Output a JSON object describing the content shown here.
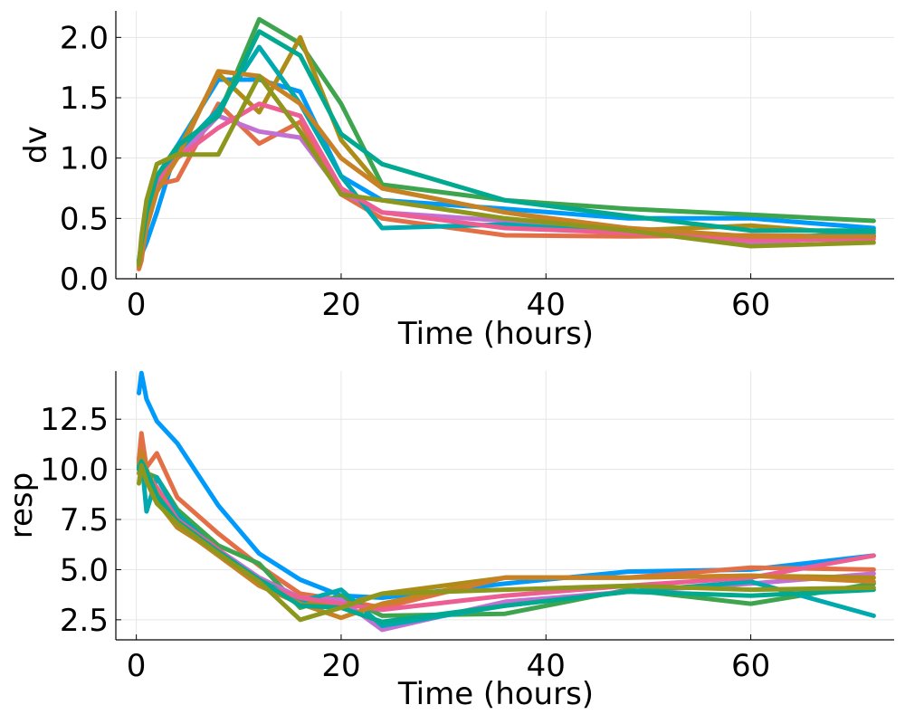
{
  "chart_data": [
    {
      "type": "line",
      "title": "",
      "xlabel": "Time (hours)",
      "ylabel": "dv",
      "xlim": [
        -2,
        74
      ],
      "ylim": [
        0.0,
        2.22
      ],
      "xticks": [
        0,
        20,
        40,
        60
      ],
      "xtick_labels": [
        "0",
        "20",
        "40",
        "60"
      ],
      "yticks": [
        0.0,
        0.5,
        1.0,
        1.5,
        2.0
      ],
      "ytick_labels": [
        "0.0",
        "0.5",
        "1.0",
        "1.5",
        "2.0"
      ],
      "grid": true,
      "legend": "none",
      "series": [
        {
          "color": "#009AFA",
          "x": [
            0.25,
            0.5,
            1,
            2,
            4,
            8,
            12,
            16,
            20,
            24,
            36,
            48,
            60,
            72
          ],
          "y": [
            0.13,
            0.2,
            0.3,
            0.55,
            1.1,
            1.65,
            1.65,
            1.55,
            0.85,
            0.65,
            0.58,
            0.5,
            0.5,
            0.42
          ]
        },
        {
          "color": "#E36F47",
          "x": [
            0.25,
            0.5,
            1,
            2,
            4,
            8,
            12,
            16,
            20,
            24,
            36,
            48,
            60,
            72
          ],
          "y": [
            0.08,
            0.15,
            0.45,
            0.78,
            0.82,
            1.45,
            1.12,
            1.3,
            0.7,
            0.5,
            0.36,
            0.35,
            0.36,
            0.35
          ]
        },
        {
          "color": "#3EA44E",
          "x": [
            0.25,
            0.5,
            1,
            2,
            4,
            8,
            12,
            16,
            20,
            24,
            36,
            48,
            60,
            72
          ],
          "y": [
            0.1,
            0.22,
            0.5,
            0.8,
            1.0,
            1.35,
            2.15,
            1.95,
            1.45,
            0.78,
            0.65,
            0.58,
            0.53,
            0.48
          ]
        },
        {
          "color": "#C271D2",
          "x": [
            0.25,
            0.5,
            1,
            2,
            4,
            8,
            12,
            16,
            20,
            24,
            36,
            48,
            60,
            72
          ],
          "y": [
            0.15,
            0.25,
            0.5,
            0.82,
            1.0,
            1.35,
            1.22,
            1.17,
            0.72,
            0.55,
            0.48,
            0.42,
            0.3,
            0.35
          ]
        },
        {
          "color": "#AC8D18",
          "x": [
            0.25,
            0.5,
            1,
            2,
            4,
            8,
            12,
            16,
            20,
            24,
            36,
            48,
            60,
            72
          ],
          "y": [
            0.1,
            0.22,
            0.48,
            0.8,
            1.05,
            1.7,
            1.38,
            2.0,
            1.15,
            0.75,
            0.55,
            0.4,
            0.44,
            0.36
          ]
        },
        {
          "color": "#00A9AD",
          "x": [
            0.25,
            0.5,
            1,
            2,
            4,
            8,
            12,
            16,
            20,
            24,
            36,
            48,
            60,
            72
          ],
          "y": [
            0.12,
            0.2,
            0.45,
            0.75,
            1.05,
            1.4,
            1.92,
            1.45,
            0.85,
            0.42,
            0.45,
            0.38,
            0.33,
            0.38
          ]
        },
        {
          "color": "#ED5E93",
          "x": [
            0.25,
            0.5,
            1,
            2,
            4,
            8,
            12,
            16,
            20,
            24,
            36,
            48,
            60,
            72
          ],
          "y": [
            0.12,
            0.25,
            0.5,
            0.8,
            1.0,
            1.25,
            1.45,
            1.35,
            0.75,
            0.55,
            0.42,
            0.38,
            0.32,
            0.33
          ]
        },
        {
          "color": "#C68225",
          "x": [
            0.25,
            0.5,
            1,
            2,
            4,
            8,
            12,
            16,
            20,
            24,
            36,
            48,
            60,
            72
          ],
          "y": [
            0.1,
            0.2,
            0.42,
            0.72,
            1.0,
            1.72,
            1.68,
            1.45,
            1.0,
            0.75,
            0.55,
            0.42,
            0.35,
            0.35
          ]
        },
        {
          "color": "#00A98F",
          "x": [
            0.25,
            0.5,
            1,
            2,
            4,
            8,
            12,
            16,
            20,
            24,
            36,
            48,
            60,
            72
          ],
          "y": [
            0.15,
            0.3,
            0.55,
            0.85,
            1.1,
            1.35,
            2.05,
            1.85,
            1.2,
            0.95,
            0.65,
            0.52,
            0.4,
            0.4
          ]
        },
        {
          "color": "#8E971D",
          "x": [
            0.25,
            0.5,
            1,
            2,
            4,
            8,
            12,
            16,
            20,
            24,
            36,
            48,
            60,
            72
          ],
          "y": [
            0.12,
            0.35,
            0.65,
            0.95,
            1.03,
            1.03,
            1.68,
            1.22,
            0.7,
            0.65,
            0.5,
            0.4,
            0.27,
            0.3
          ]
        }
      ]
    },
    {
      "type": "line",
      "title": "",
      "xlabel": "Time (hours)",
      "ylabel": "resp",
      "xlim": [
        -2,
        74
      ],
      "ylim": [
        1.5,
        14.9
      ],
      "xticks": [
        0,
        20,
        40,
        60
      ],
      "xtick_labels": [
        "0",
        "20",
        "40",
        "60"
      ],
      "yticks": [
        2.5,
        5.0,
        7.5,
        10.0,
        12.5
      ],
      "ytick_labels": [
        "2.5",
        "5.0",
        "7.5",
        "10.0",
        "12.5"
      ],
      "grid": true,
      "legend": "none",
      "series": [
        {
          "color": "#009AFA",
          "x": [
            0.25,
            0.5,
            1,
            2,
            4,
            8,
            12,
            16,
            20,
            24,
            36,
            48,
            60,
            72
          ],
          "y": [
            13.8,
            14.8,
            13.5,
            12.4,
            11.3,
            8.2,
            5.8,
            4.5,
            3.7,
            3.6,
            4.3,
            4.9,
            5.0,
            5.7
          ]
        },
        {
          "color": "#E36F47",
          "x": [
            0.25,
            0.5,
            1,
            2,
            4,
            8,
            12,
            16,
            20,
            24,
            36,
            48,
            60,
            72
          ],
          "y": [
            10.5,
            11.8,
            10.1,
            10.8,
            8.6,
            6.8,
            5.2,
            3.8,
            3.5,
            3.1,
            4.6,
            4.6,
            5.1,
            5.0
          ]
        },
        {
          "color": "#3EA44E",
          "x": [
            0.25,
            0.5,
            1,
            2,
            4,
            8,
            12,
            16,
            20,
            24,
            36,
            48,
            60,
            72
          ],
          "y": [
            10.2,
            10.8,
            9.8,
            9.6,
            8.0,
            6.2,
            5.3,
            3.1,
            3.7,
            2.7,
            2.8,
            4.0,
            3.3,
            4.3
          ]
        },
        {
          "color": "#C271D2",
          "x": [
            0.25,
            0.5,
            1,
            2,
            4,
            8,
            12,
            16,
            20,
            24,
            36,
            48,
            60,
            72
          ],
          "y": [
            10.0,
            10.6,
            9.5,
            8.6,
            7.6,
            6.0,
            4.6,
            3.6,
            3.5,
            2.0,
            3.4,
            3.9,
            4.3,
            4.8
          ]
        },
        {
          "color": "#AC8D18",
          "x": [
            0.25,
            0.5,
            1,
            2,
            4,
            8,
            12,
            16,
            20,
            24,
            36,
            48,
            60,
            72
          ],
          "y": [
            9.8,
            10.2,
            9.6,
            8.4,
            7.1,
            5.8,
            4.5,
            3.4,
            3.2,
            3.8,
            4.6,
            4.6,
            4.7,
            4.6
          ]
        },
        {
          "color": "#00A9AD",
          "x": [
            0.25,
            0.5,
            1,
            2,
            4,
            8,
            12,
            16,
            20,
            24,
            36,
            48,
            60,
            72
          ],
          "y": [
            10.1,
            10.6,
            7.9,
            9.6,
            7.8,
            5.9,
            4.5,
            3.4,
            4.0,
            2.2,
            3.2,
            3.9,
            4.4,
            2.7
          ]
        },
        {
          "color": "#ED5E93",
          "x": [
            0.25,
            0.5,
            1,
            2,
            4,
            8,
            12,
            16,
            20,
            24,
            36,
            48,
            60,
            72
          ],
          "y": [
            10.4,
            10.8,
            9.8,
            9.1,
            7.5,
            6.0,
            4.3,
            3.6,
            3.3,
            3.0,
            3.7,
            4.2,
            4.6,
            5.7
          ]
        },
        {
          "color": "#C68225",
          "x": [
            0.25,
            0.5,
            1,
            2,
            4,
            8,
            12,
            16,
            20,
            24,
            36,
            48,
            60,
            72
          ],
          "y": [
            10.3,
            10.9,
            10.0,
            8.8,
            7.2,
            5.7,
            4.2,
            3.3,
            2.6,
            3.3,
            4.6,
            4.6,
            4.7,
            4.4
          ]
        },
        {
          "color": "#00A98F",
          "x": [
            0.25,
            0.5,
            1,
            2,
            4,
            8,
            12,
            16,
            20,
            24,
            36,
            48,
            60,
            72
          ],
          "y": [
            10.0,
            10.4,
            9.9,
            8.7,
            7.4,
            5.9,
            4.5,
            3.2,
            3.1,
            2.4,
            3.2,
            3.9,
            3.7,
            4.0
          ]
        },
        {
          "color": "#8E971D",
          "x": [
            0.25,
            0.5,
            1,
            2,
            4,
            8,
            12,
            16,
            20,
            24,
            36,
            48,
            60,
            72
          ],
          "y": [
            9.3,
            10.2,
            9.4,
            8.3,
            7.3,
            5.8,
            4.4,
            2.5,
            3.1,
            3.8,
            4.0,
            4.2,
            4.0,
            4.1
          ]
        }
      ]
    }
  ]
}
